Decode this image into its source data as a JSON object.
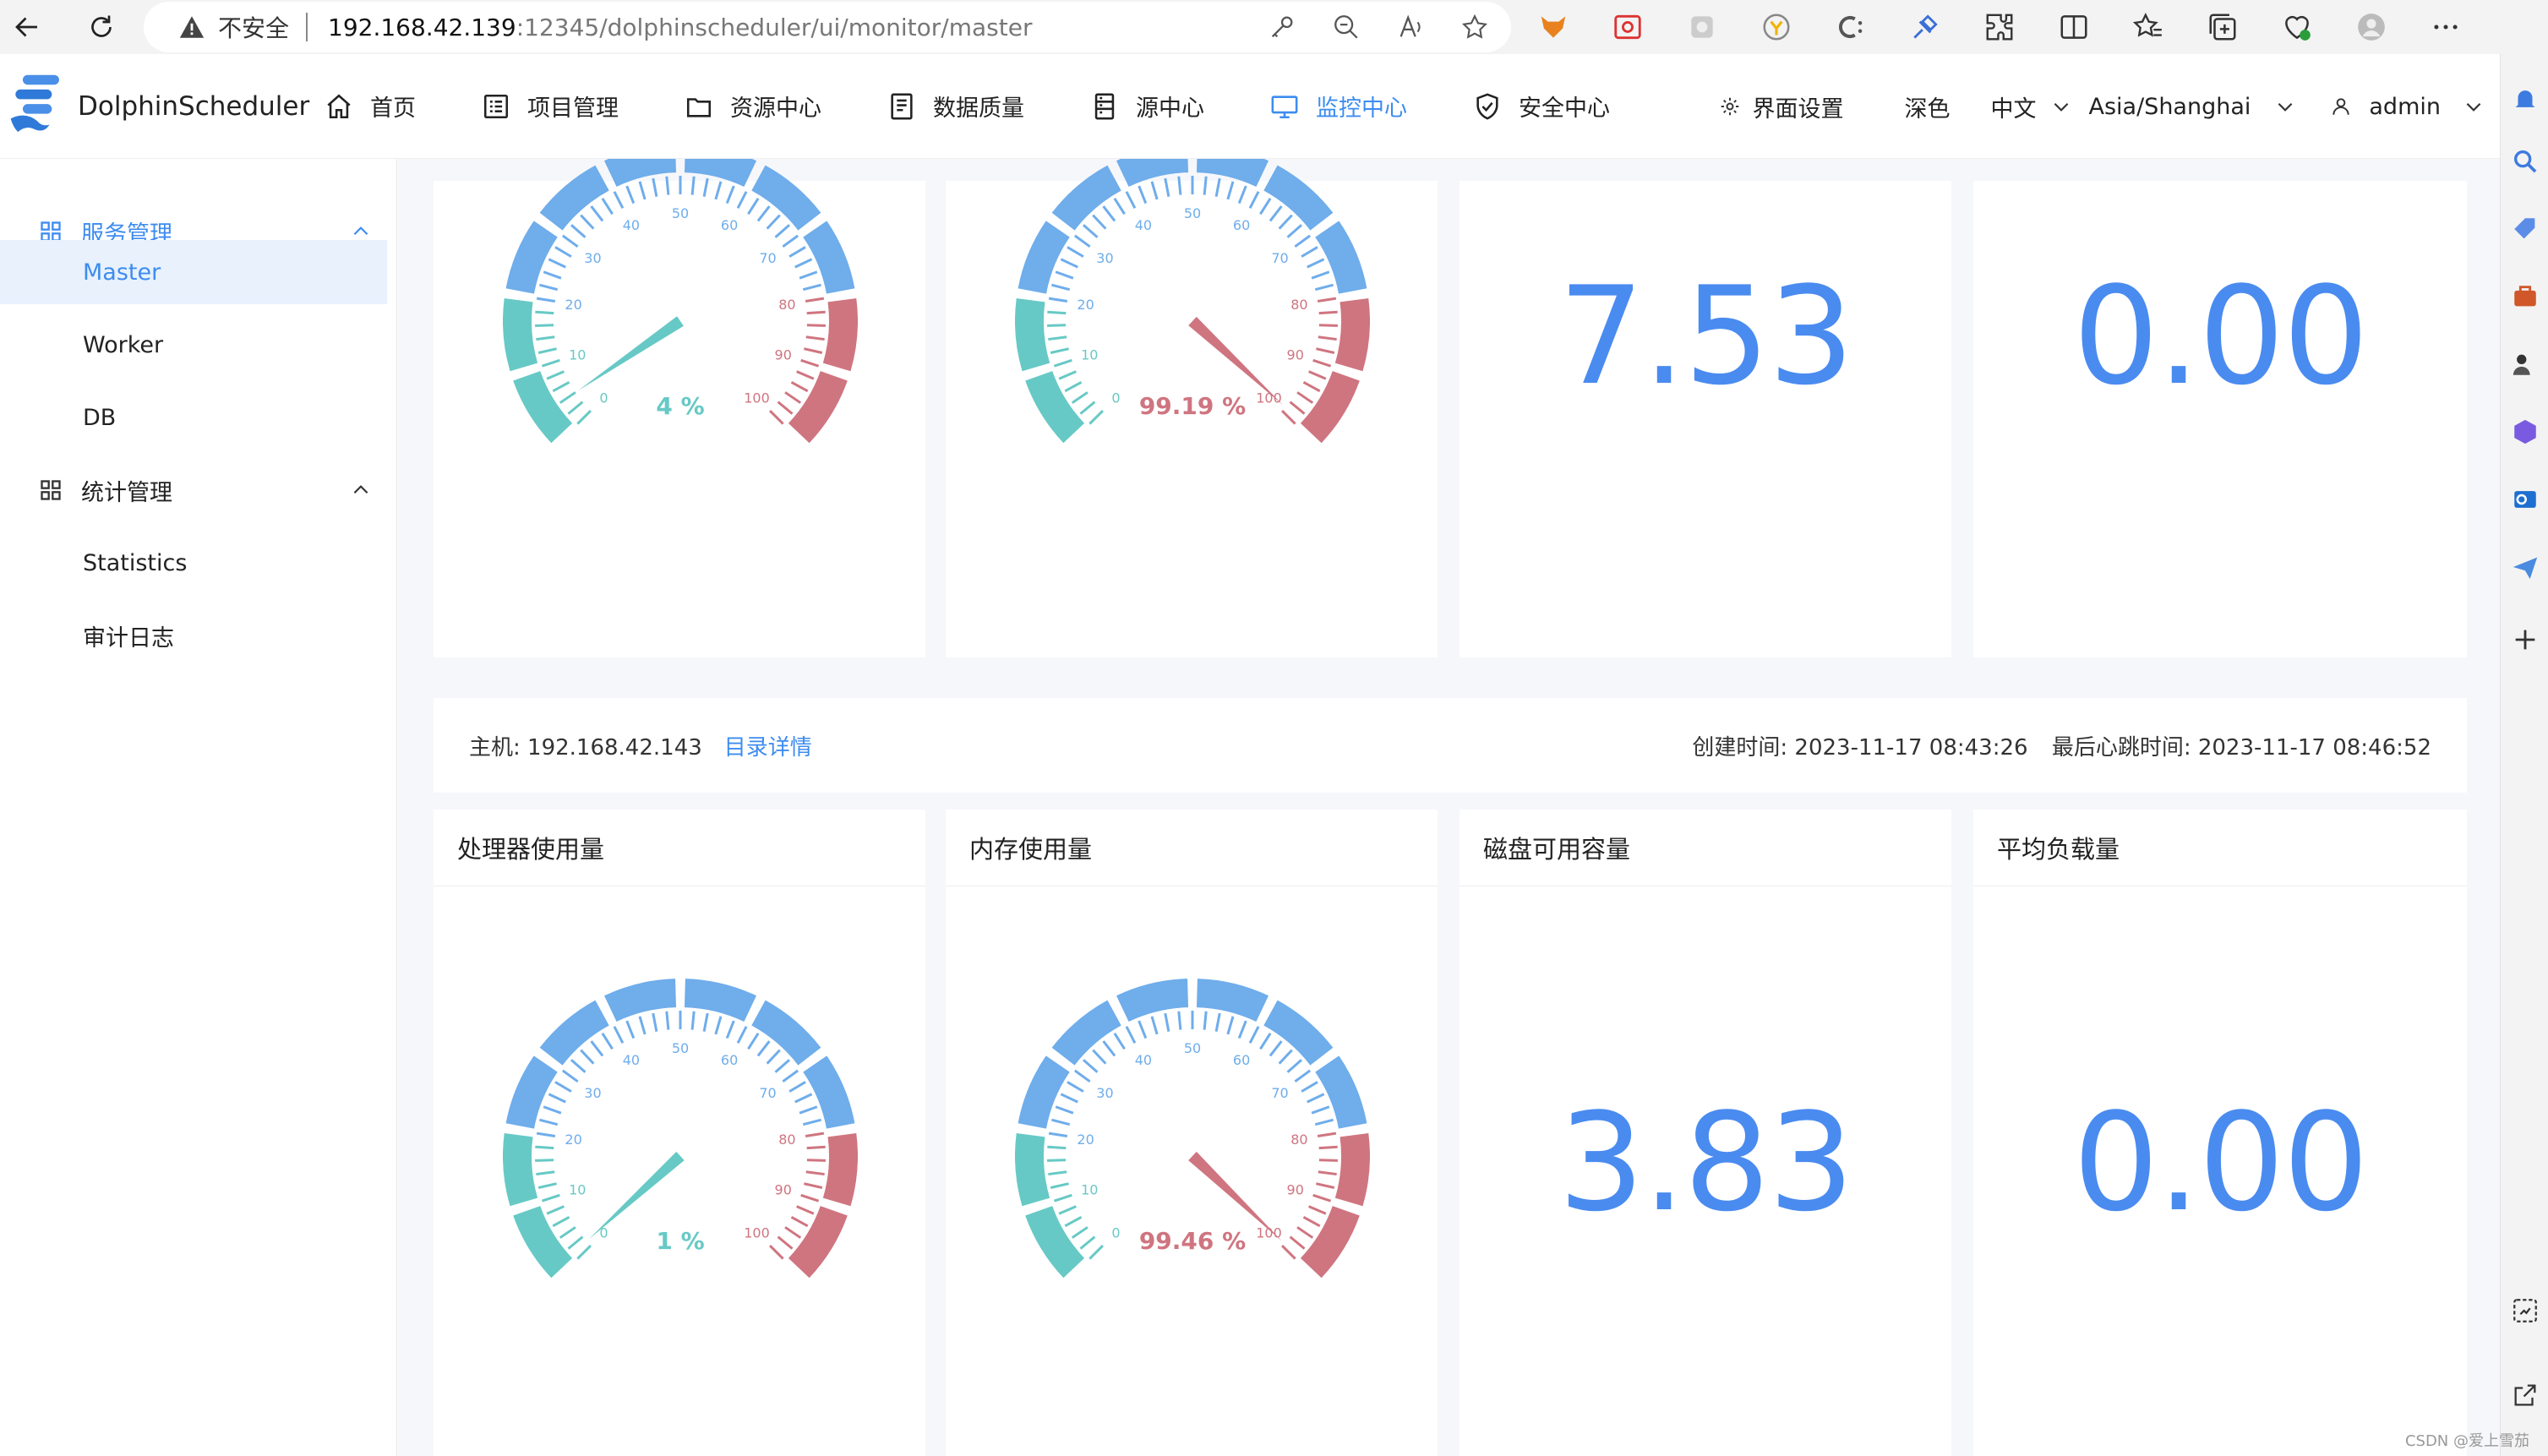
{
  "browser": {
    "insecure_label": "不安全",
    "url_host": "192.168.42.139",
    "url_path": ":12345/dolphinscheduler/ui/monitor/master"
  },
  "app": {
    "brand": "DolphinScheduler",
    "menu": [
      {
        "label": "首页",
        "icon": "home-icon"
      },
      {
        "label": "项目管理",
        "icon": "list-icon"
      },
      {
        "label": "资源中心",
        "icon": "folder-icon"
      },
      {
        "label": "数据质量",
        "icon": "document-icon"
      },
      {
        "label": "源中心",
        "icon": "database-icon"
      },
      {
        "label": "监控中心",
        "icon": "monitor-icon",
        "active": true
      },
      {
        "label": "安全中心",
        "icon": "shield-icon"
      }
    ],
    "header_right": {
      "settings_label": "界面设置",
      "theme_label": "深色",
      "language": "中文",
      "timezone": "Asia/Shanghai",
      "user": "admin"
    }
  },
  "sidebar": {
    "group1": {
      "label": "服务管理",
      "items": [
        "Master",
        "Worker",
        "DB"
      ]
    },
    "group2": {
      "label": "统计管理",
      "items": [
        "Statistics",
        "审计日志"
      ]
    },
    "selected": "Master"
  },
  "colors": {
    "accent": "#3d8cf0",
    "gauge_low": "#67c9c5",
    "gauge_mid": "#6fadeb",
    "gauge_high": "#cf7580",
    "value_blue": "#4a8bf0"
  },
  "top_row": {
    "cpu": {
      "value": 4,
      "label": "4 %"
    },
    "memory": {
      "value": 99.19,
      "label": "99.19 %"
    },
    "disk": "7.53",
    "load": "0.00"
  },
  "server": {
    "host_label": "主机: 192.168.42.143",
    "dir_link": "目录详情",
    "create_time": "创建时间: 2023-11-17 08:43:26",
    "heartbeat_time": "最后心跳时间: 2023-11-17 08:46:52"
  },
  "bottom_row": {
    "cpu": {
      "title": "处理器使用量",
      "value": 1,
      "label": "1 %"
    },
    "memory": {
      "title": "内存使用量",
      "value": 99.46,
      "label": "99.46 %"
    },
    "disk": {
      "title": "磁盘可用容量",
      "value": "3.83"
    },
    "load": {
      "title": "平均负载量",
      "value": "0.00"
    }
  },
  "gauge_ticks": [
    "0",
    "10",
    "20",
    "30",
    "40",
    "50",
    "60",
    "70",
    "80",
    "90",
    "100"
  ],
  "watermark": "CSDN @爱上雪茄"
}
